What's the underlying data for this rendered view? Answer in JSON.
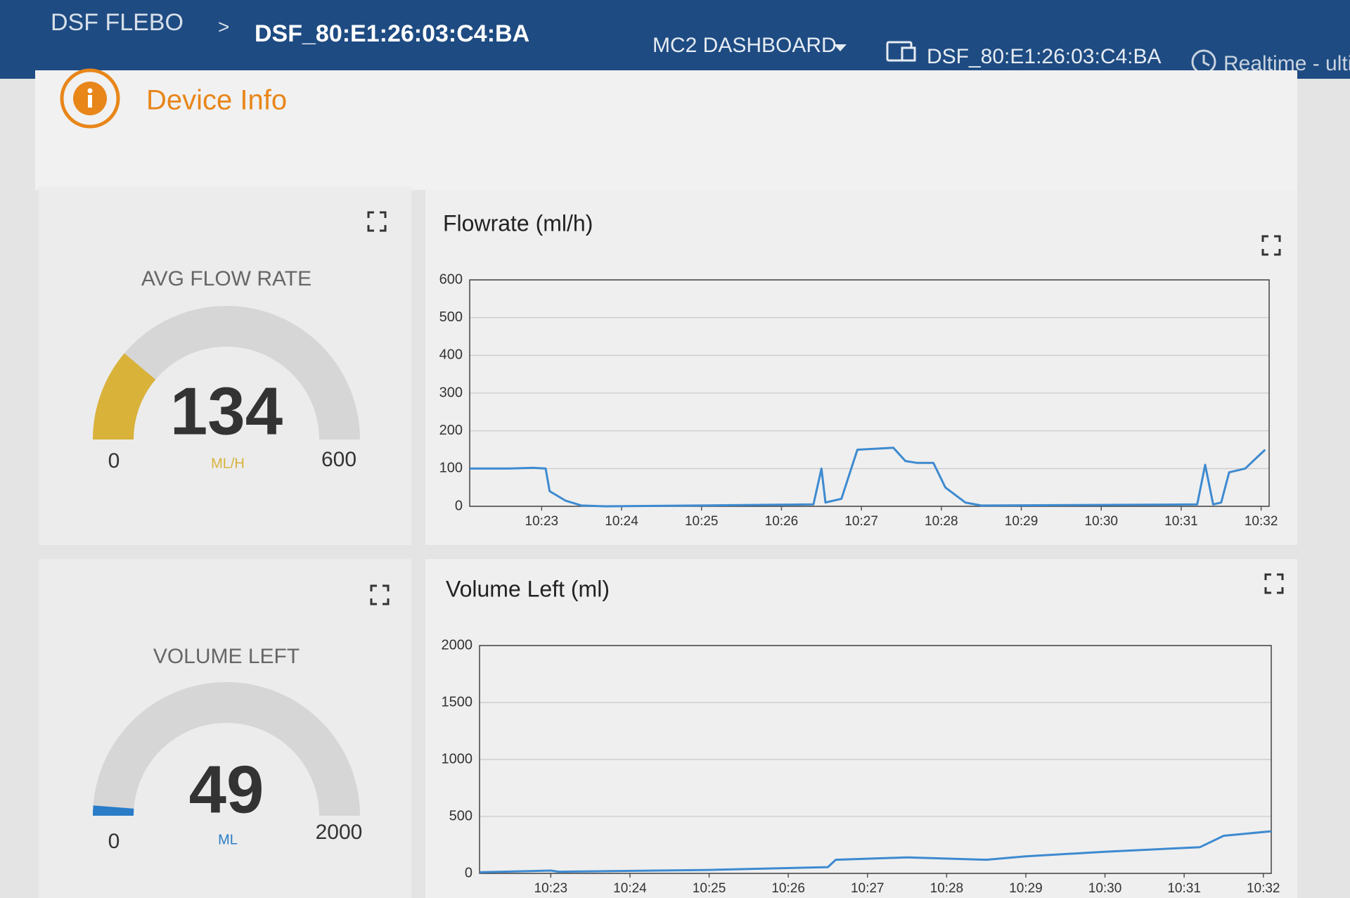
{
  "header": {
    "app": "DSF FLEBO",
    "separator": ">",
    "device": "DSF_80:E1:26:03:C4:BA",
    "dashboard_menu": "MC2 DASHBOARD",
    "device_selector": "DSF_80:E1:26:03:C4:BA",
    "time_selector": "Realtime - ultin"
  },
  "device_info": {
    "title": "Device Info"
  },
  "gauges": [
    {
      "title": "AVG FLOW RATE",
      "value": 134,
      "min": 0,
      "max": 600,
      "unit": "ML/H",
      "color": "#d9b23a"
    },
    {
      "title": "VOLUME LEFT",
      "value": 49,
      "min": 0,
      "max": 2000,
      "unit": "ML",
      "color": "#2a7cc7"
    }
  ],
  "charts": [
    {
      "type": "line",
      "title": "Flowrate (ml/h)",
      "color": "#3d8ad0",
      "x": [
        622.1,
        622.6,
        622.9,
        623.05,
        623.1,
        623.3,
        623.5,
        623.8,
        626.4,
        626.5,
        626.55,
        626.75,
        626.95,
        627.4,
        627.55,
        627.7,
        627.9,
        628.05,
        628.3,
        628.5,
        631.2,
        631.3,
        631.4,
        631.5,
        631.6,
        631.8,
        632.05
      ],
      "values": [
        100,
        100,
        102,
        100,
        40,
        15,
        2,
        0,
        5,
        100,
        10,
        20,
        150,
        155,
        120,
        115,
        115,
        50,
        10,
        2,
        5,
        110,
        5,
        10,
        90,
        100,
        150
      ],
      "xlim": [
        622.1,
        632.1
      ],
      "ylim": [
        0,
        600
      ],
      "yticks": [
        0,
        100,
        200,
        300,
        400,
        500,
        600
      ],
      "xticks": [
        {
          "value": 623,
          "label": "10:23"
        },
        {
          "value": 624,
          "label": "10:24"
        },
        {
          "value": 625,
          "label": "10:25"
        },
        {
          "value": 626,
          "label": "10:26"
        },
        {
          "value": 627,
          "label": "10:27"
        },
        {
          "value": 628,
          "label": "10:28"
        },
        {
          "value": 629,
          "label": "10:29"
        },
        {
          "value": 630,
          "label": "10:30"
        },
        {
          "value": 631,
          "label": "10:31"
        },
        {
          "value": 632,
          "label": "10:32"
        }
      ],
      "grid": true
    },
    {
      "type": "line",
      "title": "Volume Left (ml)",
      "color": "#3d8ad0",
      "x": [
        622.1,
        623.0,
        623.1,
        625.0,
        626.5,
        626.6,
        627.5,
        628.5,
        629.0,
        630.0,
        631.2,
        631.5,
        632.1
      ],
      "values": [
        10,
        25,
        15,
        30,
        55,
        120,
        140,
        120,
        150,
        190,
        230,
        330,
        370
      ],
      "xlim": [
        622.1,
        632.1
      ],
      "ylim": [
        0,
        2000
      ],
      "yticks": [
        0,
        500,
        1000,
        1500,
        2000
      ],
      "xticks": [
        {
          "value": 623,
          "label": "10:23"
        },
        {
          "value": 624,
          "label": "10:24"
        },
        {
          "value": 625,
          "label": "10:25"
        },
        {
          "value": 626,
          "label": "10:26"
        },
        {
          "value": 627,
          "label": "10:27"
        },
        {
          "value": 628,
          "label": "10:28"
        },
        {
          "value": 629,
          "label": "10:29"
        },
        {
          "value": 630,
          "label": "10:30"
        },
        {
          "value": 631,
          "label": "10:31"
        },
        {
          "value": 632,
          "label": "10:32"
        }
      ],
      "grid": true
    }
  ]
}
